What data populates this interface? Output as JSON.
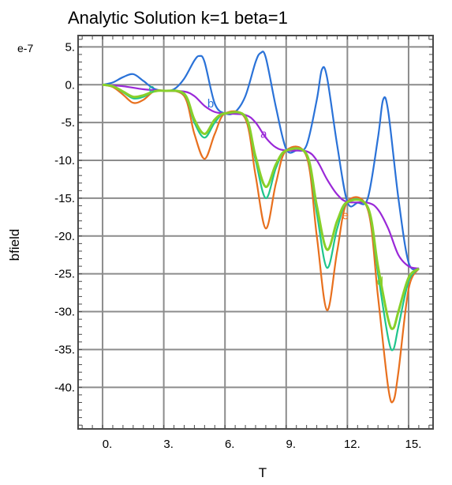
{
  "chart_data": {
    "type": "line",
    "title": "Analytic Solution k=1 beta=1",
    "xlabel": "T",
    "ylabel": "bfield",
    "y_exponent_label": "e-7",
    "xlim": [
      -1.2,
      16.2
    ],
    "ylim": [
      -45.5,
      6.5
    ],
    "x_ticks": [
      0,
      3,
      6,
      9,
      12,
      15
    ],
    "x_tick_labels": [
      "0.",
      "3.",
      "6.",
      "9.",
      "12.",
      "15."
    ],
    "y_ticks": [
      5,
      0,
      -5,
      -10,
      -15,
      -20,
      -25,
      -30,
      -35,
      -40
    ],
    "y_tick_labels": [
      "5.",
      "0.",
      "-5.",
      "-10.",
      "-15.",
      "-20.",
      "-25.",
      "-30.",
      "-35.",
      "-40."
    ],
    "grid": true,
    "colors": {
      "grid": "#8c8c8c",
      "frame": "#4a4a4a",
      "series_b": "#2a72d8",
      "series_a": "#9a28d8",
      "series_e": "#e8701e",
      "series_extra": "#1fc58c",
      "series_c": "#88d02a"
    },
    "series": [
      {
        "name": "b",
        "color_key": "series_b",
        "x": [
          0,
          0.5,
          1.0,
          1.5,
          2.0,
          2.5,
          3.0,
          3.5,
          4.0,
          4.5,
          4.75,
          5.0,
          5.5,
          6.0,
          6.5,
          7.0,
          7.5,
          7.75,
          8.0,
          8.5,
          9.0,
          9.5,
          10.0,
          10.5,
          10.75,
          11.0,
          11.5,
          12.0,
          12.5,
          13.0,
          13.5,
          13.75,
          14.0,
          14.5,
          15.0,
          15.5
        ],
        "y": [
          0,
          0.3,
          1.0,
          1.4,
          0.5,
          -0.5,
          -0.8,
          -0.6,
          0.8,
          3.2,
          3.8,
          3.0,
          -2.5,
          -3.8,
          -3.6,
          -1.5,
          3.0,
          4.2,
          3.6,
          -3.0,
          -8.5,
          -8.7,
          -8.0,
          -2.0,
          2.0,
          1.0,
          -8.0,
          -15.5,
          -15.6,
          -15.0,
          -7.0,
          -2.0,
          -3.5,
          -15.0,
          -23.5,
          -24.3
        ]
      },
      {
        "name": "a",
        "color_key": "series_a",
        "x": [
          0,
          1.0,
          2.0,
          3.0,
          4.0,
          4.5,
          5.0,
          5.5,
          6.0,
          7.0,
          7.5,
          8.0,
          8.5,
          9.0,
          10.0,
          10.5,
          11.0,
          11.5,
          12.0,
          13.0,
          13.5,
          14.0,
          14.5,
          15.0,
          15.5
        ],
        "y": [
          0,
          -0.2,
          -0.6,
          -0.8,
          -0.9,
          -1.5,
          -2.8,
          -3.6,
          -3.8,
          -4.0,
          -5.0,
          -7.0,
          -8.3,
          -8.7,
          -8.8,
          -10.0,
          -12.5,
          -14.5,
          -15.5,
          -15.6,
          -16.5,
          -19.0,
          -22.5,
          -24.0,
          -24.3
        ]
      },
      {
        "name": "e",
        "color_key": "series_e",
        "x": [
          0,
          0.5,
          1.0,
          1.5,
          2.0,
          2.5,
          3.0,
          4.0,
          4.5,
          5.0,
          5.5,
          6.0,
          7.0,
          7.5,
          8.0,
          8.5,
          9.0,
          10.0,
          10.5,
          11.0,
          11.5,
          12.0,
          13.0,
          13.5,
          14.0,
          14.25,
          14.5,
          15.0,
          15.5
        ],
        "y": [
          0,
          -0.3,
          -1.3,
          -2.4,
          -2.0,
          -0.9,
          -0.8,
          -1.5,
          -6.5,
          -9.8,
          -6.5,
          -3.8,
          -4.5,
          -12.0,
          -19.0,
          -13.0,
          -8.7,
          -9.5,
          -20.0,
          -29.8,
          -22.0,
          -15.5,
          -16.5,
          -28.0,
          -40.0,
          -41.8,
          -38.0,
          -27.0,
          -24.3
        ]
      },
      {
        "name": "",
        "color_key": "series_extra",
        "x": [
          0,
          0.5,
          1.0,
          1.5,
          2.0,
          2.5,
          3.0,
          4.0,
          4.5,
          5.0,
          5.5,
          6.0,
          7.0,
          7.5,
          8.0,
          8.5,
          9.0,
          10.0,
          10.5,
          11.0,
          11.5,
          12.0,
          13.0,
          13.5,
          14.0,
          14.25,
          14.5,
          15.0,
          15.5
        ],
        "y": [
          0,
          -0.2,
          -1.0,
          -1.8,
          -1.6,
          -0.9,
          -0.8,
          -1.3,
          -5.0,
          -7.0,
          -5.0,
          -3.8,
          -4.3,
          -10.0,
          -15.0,
          -11.0,
          -8.7,
          -9.3,
          -17.0,
          -24.2,
          -19.0,
          -15.5,
          -16.3,
          -25.0,
          -33.5,
          -35.0,
          -32.0,
          -26.0,
          -24.3
        ]
      },
      {
        "name": "c",
        "color_key": "series_c",
        "x": [
          0,
          0.5,
          1.0,
          1.5,
          2.0,
          2.5,
          3.0,
          4.0,
          4.5,
          5.0,
          5.5,
          6.0,
          7.0,
          7.5,
          8.0,
          8.5,
          9.0,
          10.0,
          10.5,
          11.0,
          11.5,
          12.0,
          13.0,
          13.5,
          14.0,
          14.25,
          14.5,
          15.0,
          15.5
        ],
        "y": [
          0,
          -0.2,
          -0.9,
          -1.6,
          -1.4,
          -0.9,
          -0.8,
          -1.2,
          -4.6,
          -6.5,
          -4.6,
          -3.8,
          -4.2,
          -9.5,
          -13.5,
          -10.5,
          -8.7,
          -9.2,
          -16.0,
          -21.8,
          -18.0,
          -15.5,
          -16.2,
          -24.0,
          -31.0,
          -32.2,
          -30.0,
          -25.5,
          -24.3
        ]
      }
    ],
    "curve_labels": [
      {
        "text": "b",
        "x": 5.3,
        "y": -3.0,
        "color_key": "series_b"
      },
      {
        "text": "a",
        "x": 7.9,
        "y": -7.0,
        "color_key": "series_a"
      },
      {
        "text": "c",
        "x": 2.4,
        "y": -1.0,
        "color_key": "series_extra"
      },
      {
        "text": "e",
        "x": 11.9,
        "y": -17.8,
        "color_key": "series_e"
      },
      {
        "text": "d",
        "x": 13.6,
        "y": -26.5,
        "color_key": "series_c"
      }
    ]
  }
}
